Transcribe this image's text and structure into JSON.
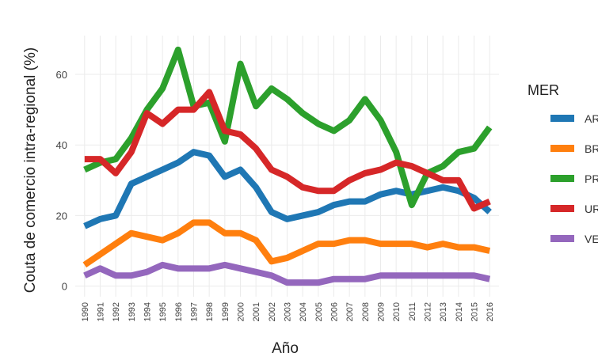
{
  "chart_data": {
    "type": "line",
    "x_label": "Año",
    "y_label": "Couta de comercio intra-regional (%)",
    "legend_title": "MER",
    "legend_position": "right",
    "grid": true,
    "x": [
      1990,
      1991,
      1992,
      1993,
      1994,
      1995,
      1996,
      1997,
      1998,
      1999,
      2000,
      2001,
      2002,
      2003,
      2004,
      2005,
      2006,
      2007,
      2008,
      2009,
      2010,
      2011,
      2012,
      2013,
      2014,
      2015,
      2016
    ],
    "xlim": [
      1989.4,
      2016.6
    ],
    "xticks": [
      1990,
      1991,
      1992,
      1993,
      1994,
      1995,
      1996,
      1997,
      1998,
      1999,
      2000,
      2001,
      2002,
      2003,
      2004,
      2005,
      2006,
      2007,
      2008,
      2009,
      2010,
      2011,
      2012,
      2013,
      2014,
      2015,
      2016
    ],
    "ylim": [
      -3,
      71
    ],
    "yticks": [
      0,
      20,
      40,
      60
    ],
    "series": [
      {
        "name": "ARG",
        "color": "#1f77b4",
        "values": [
          17,
          19,
          20,
          29,
          31,
          33,
          35,
          38,
          37,
          31,
          33,
          28,
          21,
          19,
          20,
          21,
          23,
          24,
          24,
          26,
          27,
          26,
          27,
          28,
          27,
          25,
          21
        ]
      },
      {
        "name": "BRA",
        "color": "#ff7f0e",
        "values": [
          6,
          9,
          12,
          15,
          14,
          13,
          15,
          18,
          18,
          15,
          15,
          13,
          7,
          8,
          10,
          12,
          12,
          13,
          13,
          12,
          12,
          12,
          11,
          12,
          11,
          11,
          10
        ]
      },
      {
        "name": "PRY",
        "color": "#2ca02c",
        "values": [
          33,
          35,
          36,
          42,
          50,
          56,
          67,
          51,
          52,
          41,
          63,
          51,
          56,
          53,
          49,
          46,
          44,
          47,
          53,
          47,
          38,
          23,
          32,
          34,
          38,
          39,
          45
        ]
      },
      {
        "name": "URY",
        "color": "#d62728",
        "values": [
          36,
          36,
          32,
          38,
          49,
          46,
          50,
          50,
          55,
          44,
          43,
          39,
          33,
          31,
          28,
          27,
          27,
          30,
          32,
          33,
          35,
          34,
          32,
          30,
          30,
          22,
          24
        ]
      },
      {
        "name": "VEN",
        "color": "#9467bd",
        "values": [
          3,
          5,
          3,
          3,
          4,
          6,
          5,
          5,
          5,
          6,
          5,
          4,
          3,
          1,
          1,
          1,
          2,
          2,
          2,
          3,
          3,
          3,
          3,
          3,
          3,
          3,
          2
        ]
      }
    ]
  }
}
